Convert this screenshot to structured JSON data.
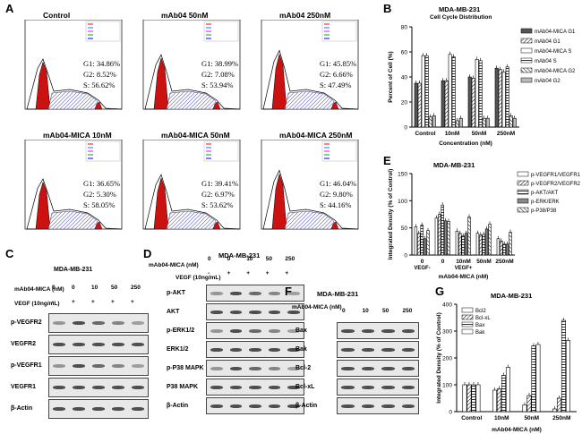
{
  "panels": {
    "A": {
      "letter": "A",
      "flow": [
        {
          "title": "Control",
          "g1": "G1: 34.86%",
          "g2": "G2: 8.52%",
          "s": "S: 56.62%"
        },
        {
          "title": "mAb04 50nM",
          "g1": "G1: 38.99%",
          "g2": "G2: 7.08%",
          "s": "S: 53.94%"
        },
        {
          "title": "mAb04 250nM",
          "g1": "G1: 45.85%",
          "g2": "G2: 6.66%",
          "s": "S: 47.49%"
        },
        {
          "title": "mAb04-MICA 10nM",
          "g1": "G1: 36.65%",
          "g2": "G2: 5.30%",
          "s": "S: 58.05%"
        },
        {
          "title": "mAb04-MICA 50nM",
          "g1": "G1: 39.41%",
          "g2": "G2: 6.97%",
          "s": "S: 53.62%"
        },
        {
          "title": "mAb04-MICA 250nM",
          "g1": "G1: 46.04%",
          "g2": "G2: 9.80%",
          "s": "S: 44.16%"
        }
      ]
    },
    "B": {
      "letter": "B",
      "title": "MDA-MB-231",
      "subtitle": "Cell Cycle Distribution",
      "ylabel": "Percent of Cell (%)",
      "xlabel": "Concentration (nM)"
    },
    "C": {
      "letter": "C",
      "title": "MDA-MB-231",
      "row1": "mAb04-MICA (nM)",
      "row1vals": [
        "0",
        "0",
        "10",
        "50",
        "250"
      ],
      "row2": "VEGF (10ng/mL)",
      "row2vals": [
        "-",
        "+",
        "+",
        "+",
        "+"
      ],
      "bands": [
        "p-VEGFR2",
        "VEGFR2",
        "p-VEGFR1",
        "VEGFR1",
        "β-Actin"
      ]
    },
    "D": {
      "letter": "D",
      "title": "MDA-MB-231",
      "row1": "mAb04-MICA (nM)",
      "row1vals": [
        "0",
        "0",
        "10",
        "50",
        "250"
      ],
      "row2": "VEGF (10ng/mL)",
      "row2vals": [
        "-",
        "+",
        "+",
        "+",
        "+"
      ],
      "bands": [
        "p-AKT",
        "AKT",
        "p-ERK1/2",
        "ERK1/2",
        "p-P38 MAPK",
        "P38 MAPK",
        "β-Actin"
      ]
    },
    "E": {
      "letter": "E",
      "title": "MDA-MB-231",
      "ylabel": "Integrated Density (% of Control)",
      "xlabel": "mAb04-MICA (nM)",
      "vegf_minus": "VEGF-",
      "vegf_plus": "VEGF+"
    },
    "F": {
      "letter": "F",
      "title": "MDA-MB-231",
      "row1": "mAb04-MICA (nM)",
      "row1vals": [
        "0",
        "10",
        "50",
        "250"
      ],
      "bands": [
        "Bax",
        "Bak",
        "Bcl-2",
        "Bcl-xL",
        "β-Actin"
      ]
    },
    "G": {
      "letter": "G",
      "title": "MDA-MB-231",
      "ylabel": "Integrated Density (% of Control)",
      "xlabel": "mAb04-MICA (nM)"
    }
  },
  "chart_data": [
    {
      "type": "bar",
      "panel": "B",
      "title": "MDA-MB-231",
      "subtitle": "Cell Cycle Distribution",
      "xlabel": "Concentration (nM)",
      "ylabel": "Percent of Cell (%)",
      "ylim": [
        0,
        80
      ],
      "yticks": [
        0,
        20,
        40,
        60,
        80
      ],
      "categories": [
        "Control",
        "10nM",
        "50nM",
        "250nM"
      ],
      "series": [
        {
          "name": "mAb04-MICA  G1",
          "values": [
            35,
            37,
            40,
            47
          ]
        },
        {
          "name": "mAb04  G1",
          "values": [
            35,
            37,
            39,
            46
          ]
        },
        {
          "name": "mAb04-MICA  S",
          "values": [
            57,
            58,
            54,
            44
          ]
        },
        {
          "name": "mAb04  S",
          "values": [
            57,
            56,
            53,
            48
          ]
        },
        {
          "name": "mAb04-MICA  G2",
          "values": [
            8,
            5,
            7,
            9
          ]
        },
        {
          "name": "mAb04  G2",
          "values": [
            9,
            7,
            7,
            7
          ]
        }
      ],
      "annotations": [
        "NS",
        "NS",
        "NS",
        "NS",
        "NS",
        "*",
        "*",
        "*",
        "*"
      ]
    },
    {
      "type": "bar",
      "panel": "E",
      "title": "MDA-MB-231",
      "xlabel": "mAb04-MICA (nM)",
      "ylabel": "Integrated Density (% of Control)",
      "ylim": [
        0,
        150
      ],
      "yticks": [
        0,
        50,
        100,
        150
      ],
      "categories": [
        "0",
        "0",
        "10nM",
        "50nM",
        "250nM"
      ],
      "series": [
        {
          "name": "p-VEGFR1/VEGFR1",
          "values": [
            52,
            68,
            44,
            40,
            30
          ]
        },
        {
          "name": "p-VEGFR2/VEGFR2",
          "values": [
            40,
            75,
            40,
            37,
            26
          ]
        },
        {
          "name": "p-AKT/AKT",
          "values": [
            55,
            92,
            35,
            38,
            20
          ]
        },
        {
          "name": "p-ERK/ERK",
          "values": [
            30,
            63,
            40,
            48,
            20
          ]
        },
        {
          "name": "p-P38/P38",
          "values": [
            45,
            62,
            70,
            57,
            42
          ]
        }
      ],
      "group_labels": [
        "VEGF-",
        "VEGF+"
      ],
      "annotations": [
        "*",
        "*",
        "*",
        "*",
        "NS",
        "*",
        "*",
        "*",
        "NS",
        "*",
        "*",
        "*"
      ]
    },
    {
      "type": "bar",
      "panel": "G",
      "title": "MDA-MB-231",
      "xlabel": "mAb04-MICA (nM)",
      "ylabel": "Integrated Density (% of Control)",
      "ylim": [
        0,
        400
      ],
      "yticks": [
        0,
        100,
        200,
        300,
        400
      ],
      "categories": [
        "Control",
        "10nM",
        "50nM",
        "250nM"
      ],
      "series": [
        {
          "name": "Bcl2",
          "values": [
            100,
            80,
            25,
            10
          ]
        },
        {
          "name": "Bcl-xL",
          "values": [
            100,
            85,
            60,
            50
          ]
        },
        {
          "name": "Bax",
          "values": [
            100,
            135,
            245,
            340
          ]
        },
        {
          "name": "Bak",
          "values": [
            100,
            165,
            250,
            265
          ]
        }
      ],
      "annotations": [
        "**",
        "**",
        "**",
        "*",
        "*",
        "**",
        "**",
        "*",
        "**",
        "*",
        "NS",
        "*",
        "NS"
      ]
    }
  ]
}
